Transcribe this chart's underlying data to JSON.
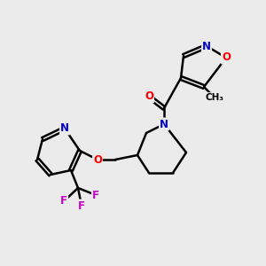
{
  "bg_color": "#ebebeb",
  "bond_color": "#000000",
  "atom_colors": {
    "N": "#0000cc",
    "O": "#ff0000",
    "F": "#cc00cc",
    "C": "#000000"
  },
  "lw": 1.8,
  "fontsize": 8.5
}
